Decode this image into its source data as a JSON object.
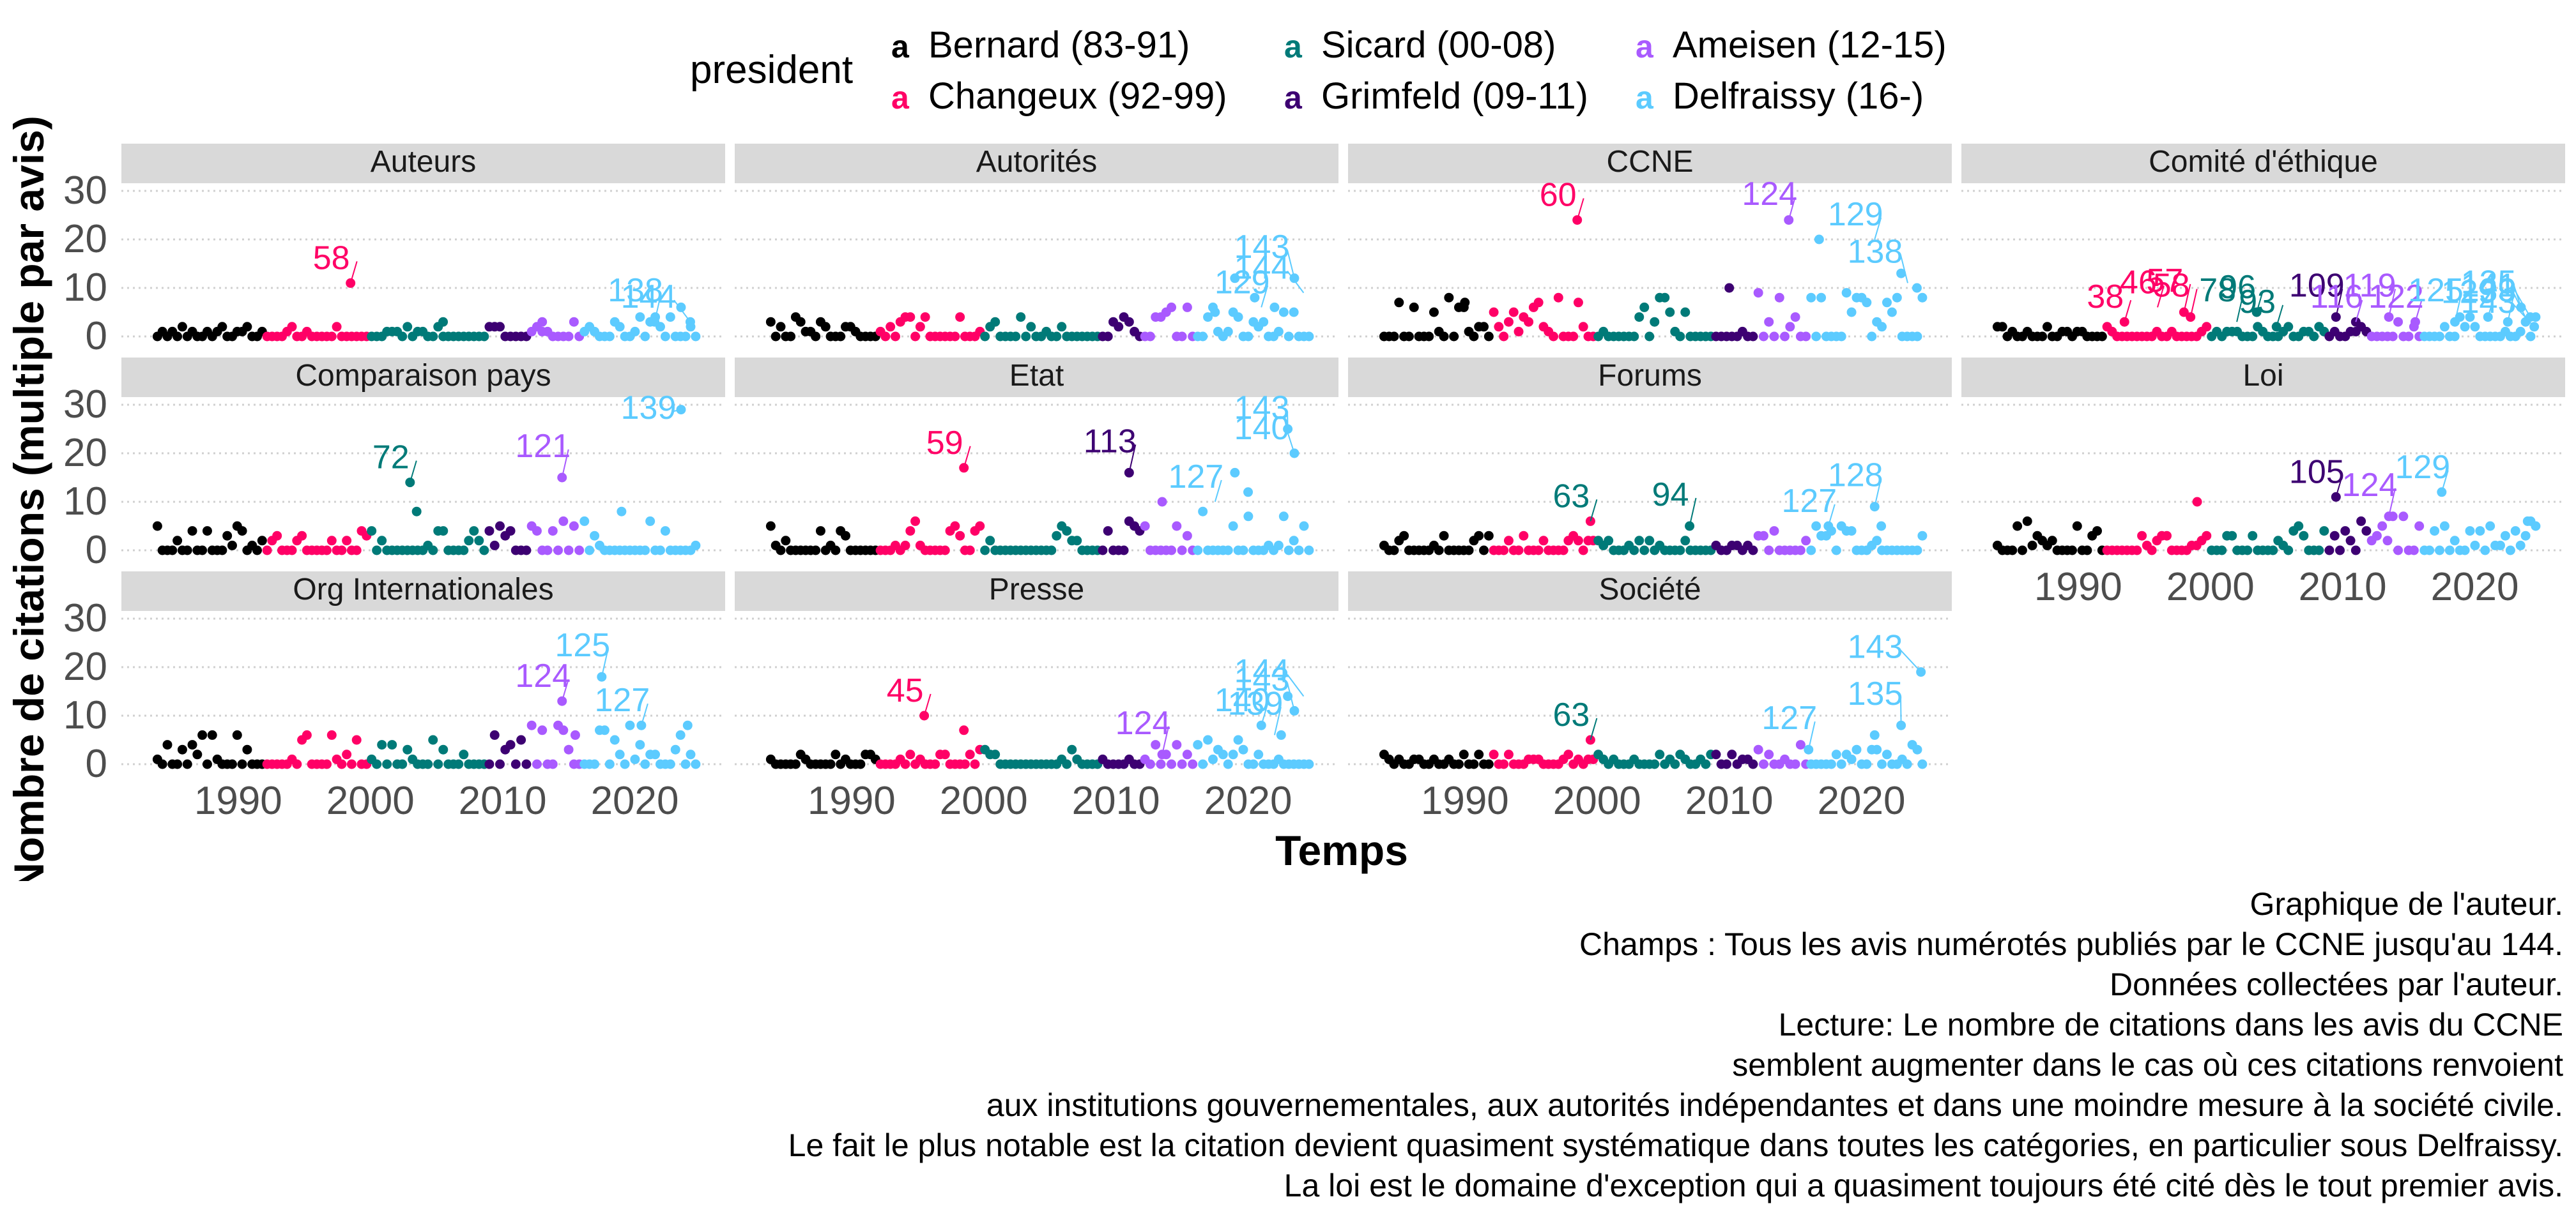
{
  "chart_data": {
    "type": "scatter",
    "ylabel": "Nombre de citations (multiple par avis)",
    "xlabel": "Temps",
    "x_ticks": [
      1990,
      2000,
      2010,
      2020
    ],
    "y_ticks": [
      0,
      10,
      20,
      30
    ],
    "xlim": [
      1983,
      2025
    ],
    "ylim": [
      0,
      30
    ],
    "grid": "horizontal dotted",
    "legend": {
      "title": "president",
      "placement": "top",
      "key_glyph": "a",
      "entries": [
        {
          "name": "Bernard (83-91)",
          "color": "#000000"
        },
        {
          "name": "Changeux (92-99)",
          "color": "#ff0066"
        },
        {
          "name": "Sicard (00-08)",
          "color": "#007a78"
        },
        {
          "name": "Grimfeld (09-11)",
          "color": "#3d0072"
        },
        {
          "name": "Ameisen (12-15)",
          "color": "#a95aff"
        },
        {
          "name": "Delfraissy (16-)",
          "color": "#5ccbff"
        }
      ]
    },
    "periods": [
      {
        "president": 0,
        "from": 1983.7,
        "to": 1992.0
      },
      {
        "president": 1,
        "from": 1992.0,
        "to": 1999.9
      },
      {
        "president": 2,
        "from": 1999.9,
        "to": 2008.8
      },
      {
        "president": 3,
        "from": 2008.8,
        "to": 2012.0
      },
      {
        "president": 4,
        "from": 2012.0,
        "to": 2016.0
      },
      {
        "president": 5,
        "from": 2016.0,
        "to": 2024.8
      }
    ],
    "panels": [
      {
        "title": "Auteurs",
        "baseline_max": 2,
        "highlights": [
          {
            "x": 1998.5,
            "y": 11
          },
          {
            "x": 2005.5,
            "y": 3
          },
          {
            "x": 2013.0,
            "y": 3
          },
          {
            "x": 2021.5,
            "y": 3
          },
          {
            "x": 2023.5,
            "y": 6
          },
          {
            "x": 2024.2,
            "y": 3
          }
        ],
        "labels": [
          {
            "text": "58",
            "x": 1998.5,
            "y": 11,
            "president": 1
          },
          {
            "text": "138",
            "x": 2021.5,
            "y": 3,
            "president": 5
          },
          {
            "text": "144",
            "x": 2024.2,
            "y": 3,
            "president": 5
          }
        ]
      },
      {
        "title": "Autorités",
        "baseline_max": 4,
        "highlights": [
          {
            "x": 2019.0,
            "y": 12
          },
          {
            "x": 2022.0,
            "y": 6
          },
          {
            "x": 2023.5,
            "y": 12
          },
          {
            "x": 2020.5,
            "y": 8
          },
          {
            "x": 2017.5,
            "y": 5
          }
        ],
        "labels": [
          {
            "text": "144",
            "x": 2024.2,
            "y": 9,
            "president": 5
          },
          {
            "text": "143",
            "x": 2023.5,
            "y": 12,
            "president": 5
          },
          {
            "text": "129",
            "x": 2021.0,
            "y": 6,
            "president": 5
          }
        ]
      },
      {
        "title": "CCNE",
        "baseline_max": 8,
        "highlights": [
          {
            "x": 1998.5,
            "y": 24
          },
          {
            "x": 2014.5,
            "y": 24
          },
          {
            "x": 2016.8,
            "y": 20
          },
          {
            "x": 2023.0,
            "y": 13
          },
          {
            "x": 2024.2,
            "y": 10
          },
          {
            "x": 2010.0,
            "y": 10
          },
          {
            "x": 1990.0,
            "y": 7
          }
        ],
        "labels": [
          {
            "text": "60",
            "x": 1998.5,
            "y": 24,
            "president": 1
          },
          {
            "text": "124",
            "x": 2014.5,
            "y": 24,
            "president": 4
          },
          {
            "text": "129",
            "x": 2021.0,
            "y": 20,
            "president": 5
          },
          {
            "text": "138",
            "x": 2023.5,
            "y": 11,
            "president": 5
          }
        ]
      },
      {
        "title": "Comité d'éthique",
        "baseline_max": 2,
        "highlights": [
          {
            "x": 1993.5,
            "y": 3
          },
          {
            "x": 1998.0,
            "y": 5
          },
          {
            "x": 1998.5,
            "y": 4
          },
          {
            "x": 2003.5,
            "y": 5
          },
          {
            "x": 2005.0,
            "y": 2
          },
          {
            "x": 2009.5,
            "y": 4
          },
          {
            "x": 2011.0,
            "y": 3
          },
          {
            "x": 2013.5,
            "y": 4
          },
          {
            "x": 2015.5,
            "y": 3
          },
          {
            "x": 2018.5,
            "y": 3
          },
          {
            "x": 2021.0,
            "y": 4
          },
          {
            "x": 2023.5,
            "y": 6
          },
          {
            "x": 2024.2,
            "y": 4
          },
          {
            "x": 2024.5,
            "y": 2
          },
          {
            "x": 2022.5,
            "y": 3
          }
        ],
        "labels": [
          {
            "text": "38",
            "x": 1993.5,
            "y": 3,
            "president": 1
          },
          {
            "text": "57",
            "x": 1998.0,
            "y": 5,
            "president": 1
          },
          {
            "text": "46",
            "x": 1996.0,
            "y": 6,
            "president": 1
          },
          {
            "text": "58",
            "x": 1998.5,
            "y": 4,
            "president": 1
          },
          {
            "text": "96",
            "x": 2003.5,
            "y": 5,
            "president": 2
          },
          {
            "text": "78",
            "x": 2002.0,
            "y": 3,
            "president": 2
          },
          {
            "text": "93",
            "x": 2005.0,
            "y": 2,
            "president": 2
          },
          {
            "text": "109",
            "x": 2009.5,
            "y": 4,
            "president": 3
          },
          {
            "text": "116",
            "x": 2011.0,
            "y": 3,
            "president": 4
          },
          {
            "text": "119",
            "x": 2013.5,
            "y": 4,
            "president": 4
          },
          {
            "text": "122",
            "x": 2015.5,
            "y": 3,
            "president": 4
          },
          {
            "text": "125",
            "x": 2018.5,
            "y": 3,
            "president": 5
          },
          {
            "text": "129",
            "x": 2021.0,
            "y": 4,
            "president": 5
          },
          {
            "text": "133",
            "x": 2022.5,
            "y": 3,
            "president": 5
          },
          {
            "text": "135",
            "x": 2023.5,
            "y": 6,
            "president": 5
          },
          {
            "text": "141",
            "x": 2024.2,
            "y": 4,
            "president": 5
          },
          {
            "text": "143",
            "x": 2024.5,
            "y": 2,
            "president": 5
          },
          {
            "text": "139",
            "x": 2024.0,
            "y": 3,
            "president": 5
          }
        ]
      },
      {
        "title": "Comparaison pays",
        "baseline_max": 5,
        "highlights": [
          {
            "x": 2003.0,
            "y": 14
          },
          {
            "x": 2003.5,
            "y": 8
          },
          {
            "x": 2014.5,
            "y": 15
          },
          {
            "x": 2023.5,
            "y": 29
          },
          {
            "x": 2019.0,
            "y": 8
          }
        ],
        "labels": [
          {
            "text": "72",
            "x": 2003.0,
            "y": 14,
            "president": 2
          },
          {
            "text": "121",
            "x": 2014.5,
            "y": 15,
            "president": 4
          },
          {
            "text": "139",
            "x": 2023.5,
            "y": 29,
            "president": 5
          }
        ]
      },
      {
        "title": "Etat",
        "baseline_max": 6,
        "highlights": [
          {
            "x": 1998.5,
            "y": 17
          },
          {
            "x": 2011.0,
            "y": 16
          },
          {
            "x": 2013.5,
            "y": 10
          },
          {
            "x": 2023.0,
            "y": 25
          },
          {
            "x": 2023.5,
            "y": 20
          },
          {
            "x": 2019.0,
            "y": 16
          },
          {
            "x": 2020.0,
            "y": 12
          }
        ],
        "labels": [
          {
            "text": "59",
            "x": 1998.5,
            "y": 17,
            "president": 1
          },
          {
            "text": "113",
            "x": 2011.0,
            "y": 16,
            "president": 3
          },
          {
            "text": "127",
            "x": 2017.5,
            "y": 10,
            "president": 5
          },
          {
            "text": "143",
            "x": 2023.0,
            "y": 25,
            "president": 5
          },
          {
            "text": "140",
            "x": 2023.5,
            "y": 20,
            "president": 5
          }
        ]
      },
      {
        "title": "Forums",
        "baseline_max": 3,
        "highlights": [
          {
            "x": 1999.5,
            "y": 6
          },
          {
            "x": 2007.0,
            "y": 5
          },
          {
            "x": 2017.5,
            "y": 5
          },
          {
            "x": 2021.0,
            "y": 9
          },
          {
            "x": 2021.5,
            "y": 5
          }
        ],
        "labels": [
          {
            "text": "63",
            "x": 1999.5,
            "y": 6,
            "president": 2
          },
          {
            "text": "94",
            "x": 2007.0,
            "y": 5,
            "president": 2
          },
          {
            "text": "127",
            "x": 2017.5,
            "y": 5,
            "president": 5
          },
          {
            "text": "128",
            "x": 2021.0,
            "y": 9,
            "president": 5
          }
        ]
      },
      {
        "title": "Loi",
        "baseline_max": 6,
        "highlights": [
          {
            "x": 1999.0,
            "y": 10
          },
          {
            "x": 2009.5,
            "y": 11
          },
          {
            "x": 2013.5,
            "y": 7
          },
          {
            "x": 2017.5,
            "y": 12
          },
          {
            "x": 2024.0,
            "y": 6
          }
        ],
        "labels": [
          {
            "text": "105",
            "x": 2009.5,
            "y": 11,
            "president": 3
          },
          {
            "text": "124",
            "x": 2013.5,
            "y": 7,
            "president": 4
          },
          {
            "text": "129",
            "x": 2017.5,
            "y": 12,
            "president": 5
          }
        ]
      },
      {
        "title": "Org Internationales",
        "baseline_max": 6,
        "highlights": [
          {
            "x": 2014.5,
            "y": 13
          },
          {
            "x": 2015.5,
            "y": 6
          },
          {
            "x": 2017.5,
            "y": 18
          },
          {
            "x": 2020.5,
            "y": 8
          },
          {
            "x": 2024.0,
            "y": 8
          }
        ],
        "labels": [
          {
            "text": "124",
            "x": 2014.5,
            "y": 13,
            "president": 4
          },
          {
            "text": "125",
            "x": 2017.5,
            "y": 18,
            "president": 5
          },
          {
            "text": "127",
            "x": 2020.5,
            "y": 8,
            "president": 5
          }
        ]
      },
      {
        "title": "Presse",
        "baseline_max": 3,
        "highlights": [
          {
            "x": 1995.5,
            "y": 10
          },
          {
            "x": 1998.5,
            "y": 7
          },
          {
            "x": 2013.5,
            "y": 2
          },
          {
            "x": 2021.0,
            "y": 8
          },
          {
            "x": 2023.0,
            "y": 14
          },
          {
            "x": 2023.5,
            "y": 11
          },
          {
            "x": 2022.5,
            "y": 6
          }
        ],
        "labels": [
          {
            "text": "45",
            "x": 1995.5,
            "y": 10,
            "president": 1
          },
          {
            "text": "124",
            "x": 2013.5,
            "y": 2,
            "president": 4
          },
          {
            "text": "140",
            "x": 2021.0,
            "y": 8,
            "president": 5
          },
          {
            "text": "139",
            "x": 2022.0,
            "y": 6,
            "president": 5
          },
          {
            "text": "144",
            "x": 2024.2,
            "y": 14,
            "president": 5
          },
          {
            "text": "143",
            "x": 2023.5,
            "y": 11,
            "president": 5
          }
        ]
      },
      {
        "title": "Société",
        "baseline_max": 2,
        "highlights": [
          {
            "x": 1999.5,
            "y": 5
          },
          {
            "x": 2016.0,
            "y": 3
          },
          {
            "x": 2021.0,
            "y": 6
          },
          {
            "x": 2024.5,
            "y": 19
          },
          {
            "x": 2023.0,
            "y": 8
          }
        ],
        "labels": [
          {
            "text": "63",
            "x": 1999.5,
            "y": 5,
            "president": 2
          },
          {
            "text": "127",
            "x": 2016.0,
            "y": 3,
            "president": 5
          },
          {
            "text": "143",
            "x": 2024.5,
            "y": 19,
            "president": 5
          },
          {
            "text": "135",
            "x": 2023.0,
            "y": 8,
            "president": 5
          }
        ]
      }
    ]
  },
  "caption": [
    "Graphique de l'auteur.",
    "Champs : Tous les avis numérotés publiés par le CCNE jusqu'au 144.",
    "Données collectées par l'auteur.",
    "Lecture: Le nombre de citations dans les avis du CCNE",
    "semblent augmenter dans le cas où ces citations renvoient",
    "aux institutions gouvernementales, aux autorités indépendantes et dans une moindre mesure à la société civile.",
    "Le fait le plus notable est la citation devient quasiment systématique dans toutes les catégories, en particulier sous Delfraissy.",
    "La loi est le domaine d'exception qui a quasiment toujours été cité dès le tout premier avis."
  ]
}
